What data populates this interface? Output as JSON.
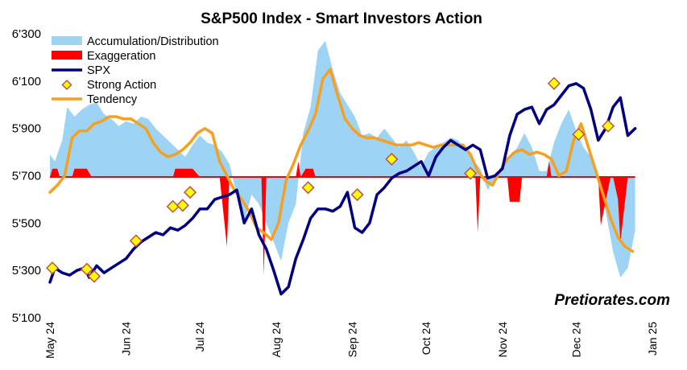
{
  "colors": {
    "accumulation": "#9dd4f5",
    "exaggeration": "#ff0000",
    "spx": "#000080",
    "strong_action_fill": "#ffff00",
    "strong_action_stroke": "#c0504d",
    "tendency": "#f5a020",
    "baseline": "#ff0000"
  },
  "watermark": "Pretiorates.com",
  "chart_data": {
    "type": "line",
    "title": "S&P500 Index - Smart Investors Action",
    "xlabel": "",
    "ylabel": "",
    "ylim": [
      5100,
      6300
    ],
    "yticks": [
      5100,
      5300,
      5500,
      5700,
      5900,
      6100,
      6300
    ],
    "ytick_labels": [
      "5'100",
      "5'300",
      "5'500",
      "5'700",
      "5'900",
      "6'100",
      "6'300"
    ],
    "xlim": [
      "2024-05-01",
      "2025-01-01"
    ],
    "xticks": [
      "2024-05-01",
      "2024-06-01",
      "2024-07-01",
      "2024-08-01",
      "2024-09-01",
      "2024-10-01",
      "2024-11-01",
      "2024-12-01",
      "2025-01-01"
    ],
    "xtick_labels": [
      "May 24",
      "Jun 24",
      "Jul 24",
      "Aug 24",
      "Sep 24",
      "Oct 24",
      "Nov 24",
      "Dec 24",
      "Jan 25"
    ],
    "baseline": 5695,
    "grid": false,
    "legend_position": "top-left",
    "legend": [
      "Accumulation/Distribution",
      "Exaggeration",
      "SPX",
      "Strong Action",
      "Tendency"
    ],
    "series": [
      {
        "name": "Accumulation/Distribution",
        "type": "area",
        "x": [
          "2024-05-01",
          "2024-05-03",
          "2024-05-06",
          "2024-05-08",
          "2024-05-11",
          "2024-05-14",
          "2024-05-17",
          "2024-05-20",
          "2024-05-23",
          "2024-05-26",
          "2024-05-29",
          "2024-06-01",
          "2024-06-04",
          "2024-06-07",
          "2024-06-10",
          "2024-06-13",
          "2024-06-16",
          "2024-06-19",
          "2024-06-22",
          "2024-06-25",
          "2024-06-28",
          "2024-07-01",
          "2024-07-04",
          "2024-07-07",
          "2024-07-10",
          "2024-07-13",
          "2024-07-16",
          "2024-07-19",
          "2024-07-22",
          "2024-07-25",
          "2024-07-28",
          "2024-07-31",
          "2024-08-03",
          "2024-08-06",
          "2024-08-09",
          "2024-08-12",
          "2024-08-15",
          "2024-08-18",
          "2024-08-21",
          "2024-08-24",
          "2024-08-27",
          "2024-08-30",
          "2024-09-02",
          "2024-09-05",
          "2024-09-08",
          "2024-09-11",
          "2024-09-14",
          "2024-09-17",
          "2024-09-20",
          "2024-09-23",
          "2024-09-26",
          "2024-09-29",
          "2024-10-02",
          "2024-10-05",
          "2024-10-08",
          "2024-10-11",
          "2024-10-14",
          "2024-10-17",
          "2024-10-20",
          "2024-10-23",
          "2024-10-26",
          "2024-10-29",
          "2024-11-01",
          "2024-11-04",
          "2024-11-07",
          "2024-11-10",
          "2024-11-13",
          "2024-11-16",
          "2024-11-19",
          "2024-11-22",
          "2024-11-25",
          "2024-11-28",
          "2024-12-01",
          "2024-12-04",
          "2024-12-07",
          "2024-12-10",
          "2024-12-13",
          "2024-12-16",
          "2024-12-19",
          "2024-12-22",
          "2024-12-25"
        ],
        "values": [
          5790,
          5760,
          5850,
          5990,
          5950,
          5980,
          6000,
          6010,
          5960,
          5940,
          5910,
          5930,
          5920,
          5950,
          5940,
          5900,
          5870,
          5840,
          5810,
          5780,
          5830,
          5870,
          5840,
          5830,
          5800,
          5750,
          5620,
          5500,
          5620,
          5580,
          5500,
          5420,
          5340,
          5500,
          5580,
          5880,
          5990,
          6230,
          6270,
          6150,
          6050,
          6000,
          5950,
          5870,
          5880,
          5860,
          5900,
          5860,
          5820,
          5850,
          5800,
          5740,
          5800,
          5820,
          5840,
          5860,
          5850,
          5810,
          5770,
          5730,
          5640,
          5690,
          5750,
          5770,
          5820,
          5880,
          5820,
          5720,
          5720,
          5840,
          5920,
          5980,
          5890,
          5820,
          5780,
          5690,
          5550,
          5380,
          5270,
          5310,
          5470
        ]
      },
      {
        "name": "Exaggeration",
        "type": "area",
        "x": [
          "2024-05-01",
          "2024-05-02",
          "2024-05-04",
          "2024-05-05",
          "2024-05-10",
          "2024-05-11",
          "2024-05-16",
          "2024-05-18",
          "2024-06-20",
          "2024-06-21",
          "2024-06-28",
          "2024-07-01",
          "2024-07-09",
          "2024-07-12",
          "2024-07-13",
          "2024-07-15",
          "2024-07-26",
          "2024-07-27",
          "2024-07-28",
          "2024-08-09",
          "2024-08-10",
          "2024-08-11",
          "2024-08-13",
          "2024-08-16",
          "2024-08-17",
          "2024-08-18",
          "2024-10-21",
          "2024-10-22",
          "2024-10-23",
          "2024-11-03",
          "2024-11-04",
          "2024-11-08",
          "2024-11-09",
          "2024-11-19",
          "2024-11-20",
          "2024-11-21",
          "2024-11-22",
          "2024-12-10",
          "2024-12-11",
          "2024-12-15",
          "2024-12-16",
          "2024-12-18",
          "2024-12-19",
          "2024-12-22",
          "2024-12-24",
          "2024-12-25"
        ],
        "values": [
          5695,
          5730,
          5730,
          5695,
          5695,
          5730,
          5730,
          5695,
          5695,
          5730,
          5730,
          5695,
          5695,
          5400,
          5695,
          5695,
          5695,
          5280,
          5695,
          5695,
          5760,
          5695,
          5730,
          5730,
          5695,
          5695,
          5695,
          5460,
          5695,
          5695,
          5590,
          5590,
          5695,
          5695,
          5760,
          5695,
          5695,
          5695,
          5490,
          5695,
          5695,
          5600,
          5420,
          5695,
          5695,
          5695
        ]
      },
      {
        "name": "SPX",
        "type": "line",
        "x": [
          "2024-05-01",
          "2024-05-03",
          "2024-05-06",
          "2024-05-09",
          "2024-05-12",
          "2024-05-15",
          "2024-05-17",
          "2024-05-20",
          "2024-05-23",
          "2024-05-26",
          "2024-05-29",
          "2024-06-01",
          "2024-06-04",
          "2024-06-07",
          "2024-06-10",
          "2024-06-13",
          "2024-06-16",
          "2024-06-19",
          "2024-06-22",
          "2024-06-25",
          "2024-06-28",
          "2024-07-01",
          "2024-07-04",
          "2024-07-07",
          "2024-07-10",
          "2024-07-13",
          "2024-07-16",
          "2024-07-19",
          "2024-07-22",
          "2024-07-25",
          "2024-07-28",
          "2024-07-31",
          "2024-08-03",
          "2024-08-06",
          "2024-08-09",
          "2024-08-12",
          "2024-08-15",
          "2024-08-18",
          "2024-08-21",
          "2024-08-24",
          "2024-08-27",
          "2024-08-30",
          "2024-09-02",
          "2024-09-05",
          "2024-09-08",
          "2024-09-11",
          "2024-09-14",
          "2024-09-17",
          "2024-09-20",
          "2024-09-23",
          "2024-09-26",
          "2024-09-29",
          "2024-10-02",
          "2024-10-05",
          "2024-10-08",
          "2024-10-11",
          "2024-10-14",
          "2024-10-17",
          "2024-10-20",
          "2024-10-23",
          "2024-10-26",
          "2024-10-29",
          "2024-11-01",
          "2024-11-04",
          "2024-11-07",
          "2024-11-10",
          "2024-11-13",
          "2024-11-16",
          "2024-11-19",
          "2024-11-22",
          "2024-11-25",
          "2024-11-28",
          "2024-12-01",
          "2024-12-04",
          "2024-12-07",
          "2024-12-10",
          "2024-12-13",
          "2024-12-16",
          "2024-12-19",
          "2024-12-22",
          "2024-12-25"
        ],
        "values": [
          5250,
          5310,
          5290,
          5280,
          5300,
          5310,
          5270,
          5320,
          5290,
          5310,
          5330,
          5350,
          5390,
          5420,
          5440,
          5460,
          5450,
          5480,
          5470,
          5490,
          5520,
          5560,
          5560,
          5600,
          5610,
          5620,
          5640,
          5500,
          5560,
          5450,
          5390,
          5300,
          5200,
          5230,
          5350,
          5430,
          5520,
          5560,
          5560,
          5550,
          5570,
          5630,
          5480,
          5460,
          5500,
          5620,
          5650,
          5690,
          5710,
          5720,
          5740,
          5760,
          5700,
          5780,
          5820,
          5850,
          5830,
          5810,
          5830,
          5810,
          5690,
          5700,
          5730,
          5870,
          5960,
          5980,
          5990,
          5920,
          5980,
          6000,
          6040,
          6080,
          6090,
          6070,
          5980,
          5850,
          5900,
          5990,
          6030,
          5870,
          5900
        ]
      },
      {
        "name": "Strong Action",
        "type": "scatter",
        "x": [
          "2024-05-02",
          "2024-05-16",
          "2024-05-19",
          "2024-06-05",
          "2024-06-20",
          "2024-06-24",
          "2024-06-27",
          "2024-08-14",
          "2024-09-03",
          "2024-09-17",
          "2024-10-19",
          "2024-11-22",
          "2024-12-02",
          "2024-12-14"
        ],
        "values": [
          5310,
          5305,
          5275,
          5425,
          5570,
          5575,
          5630,
          5650,
          5620,
          5770,
          5710,
          6090,
          5875,
          5910
        ]
      },
      {
        "name": "Tendency",
        "type": "line",
        "x": [
          "2024-05-01",
          "2024-05-04",
          "2024-05-07",
          "2024-05-10",
          "2024-05-13",
          "2024-05-16",
          "2024-05-19",
          "2024-05-22",
          "2024-05-25",
          "2024-05-28",
          "2024-05-31",
          "2024-06-03",
          "2024-06-06",
          "2024-06-09",
          "2024-06-12",
          "2024-06-15",
          "2024-06-18",
          "2024-06-21",
          "2024-06-24",
          "2024-06-27",
          "2024-06-30",
          "2024-07-03",
          "2024-07-06",
          "2024-07-09",
          "2024-07-12",
          "2024-07-15",
          "2024-07-18",
          "2024-07-21",
          "2024-07-24",
          "2024-07-27",
          "2024-07-30",
          "2024-08-02",
          "2024-08-05",
          "2024-08-08",
          "2024-08-11",
          "2024-08-14",
          "2024-08-17",
          "2024-08-20",
          "2024-08-23",
          "2024-08-26",
          "2024-08-29",
          "2024-09-01",
          "2024-09-04",
          "2024-09-07",
          "2024-09-10",
          "2024-09-13",
          "2024-09-16",
          "2024-09-19",
          "2024-09-22",
          "2024-09-25",
          "2024-09-28",
          "2024-10-01",
          "2024-10-04",
          "2024-10-07",
          "2024-10-10",
          "2024-10-13",
          "2024-10-16",
          "2024-10-19",
          "2024-10-22",
          "2024-10-25",
          "2024-10-28",
          "2024-10-31",
          "2024-11-03",
          "2024-11-06",
          "2024-11-09",
          "2024-11-12",
          "2024-11-15",
          "2024-11-18",
          "2024-11-21",
          "2024-11-24",
          "2024-11-27",
          "2024-11-30",
          "2024-12-03",
          "2024-12-06",
          "2024-12-09",
          "2024-12-12",
          "2024-12-15",
          "2024-12-18",
          "2024-12-21",
          "2024-12-24"
        ],
        "values": [
          5630,
          5660,
          5700,
          5860,
          5890,
          5890,
          5920,
          5930,
          5950,
          5950,
          5940,
          5940,
          5920,
          5900,
          5840,
          5800,
          5780,
          5790,
          5810,
          5840,
          5880,
          5900,
          5880,
          5760,
          5700,
          5640,
          5600,
          5550,
          5480,
          5460,
          5430,
          5500,
          5680,
          5750,
          5830,
          5890,
          5960,
          6110,
          6150,
          6040,
          5940,
          5900,
          5870,
          5860,
          5860,
          5850,
          5840,
          5830,
          5830,
          5830,
          5840,
          5830,
          5820,
          5830,
          5830,
          5830,
          5830,
          5790,
          5720,
          5680,
          5660,
          5720,
          5770,
          5800,
          5810,
          5790,
          5800,
          5790,
          5770,
          5700,
          5720,
          5850,
          5920,
          5820,
          5720,
          5620,
          5520,
          5440,
          5400,
          5380
        ]
      }
    ]
  }
}
